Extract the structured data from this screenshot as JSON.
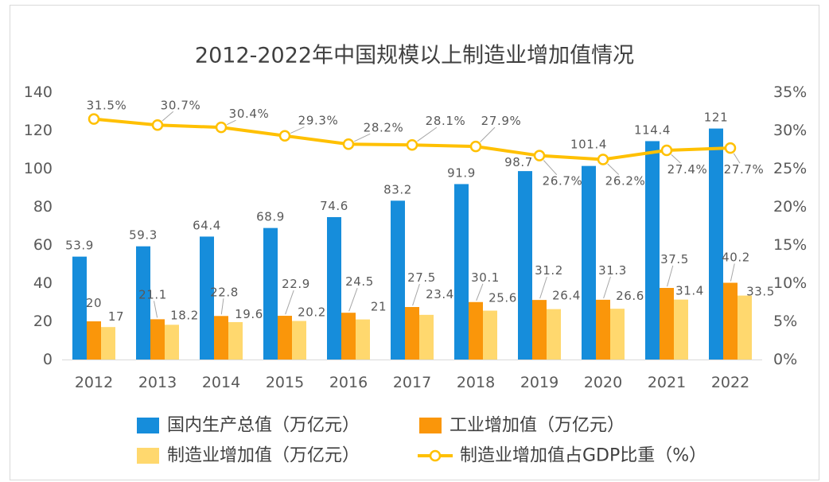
{
  "chart_data": {
    "type": "bar",
    "title": "2012-2022年中国规模以上制造业增加值情况",
    "categories": [
      "2012",
      "2013",
      "2014",
      "2015",
      "2016",
      "2017",
      "2018",
      "2019",
      "2020",
      "2021",
      "2022"
    ],
    "y_left": {
      "ylim": [
        0,
        140
      ],
      "ticks": [
        "0",
        "20",
        "40",
        "60",
        "80",
        "100",
        "120",
        "140"
      ]
    },
    "y_right": {
      "ylim": [
        0,
        35
      ],
      "ticks": [
        "0%",
        "5%",
        "10%",
        "15%",
        "20%",
        "25%",
        "30%",
        "35%"
      ]
    },
    "grid": false,
    "legend": "bottom",
    "series": [
      {
        "name": "国内生产总值（万亿元）",
        "type": "bar",
        "axis": "left",
        "color": "#168ddb",
        "values": [
          53.9,
          59.3,
          64.4,
          68.9,
          74.6,
          83.2,
          91.9,
          98.7,
          101.4,
          114.4,
          121
        ],
        "labels": [
          "53.9",
          "59.3",
          "64.4",
          "68.9",
          "74.6",
          "83.2",
          "91.9",
          "98.7",
          "101.4",
          "114.4",
          "121"
        ]
      },
      {
        "name": "工业增加值（万亿元）",
        "type": "bar",
        "axis": "left",
        "color": "#fa960a",
        "values": [
          20,
          21.1,
          22.8,
          22.9,
          24.5,
          27.5,
          30.1,
          31.2,
          31.3,
          37.5,
          40.2
        ],
        "labels": [
          "20",
          "21.1",
          "22.8",
          "22.9",
          "24.5",
          "27.5",
          "30.1",
          "31.2",
          "31.3",
          "37.5",
          "40.2"
        ]
      },
      {
        "name": "制造业增加值（万亿元）",
        "type": "bar",
        "axis": "left",
        "color": "#ffd86e",
        "values": [
          17,
          18.2,
          19.6,
          20.2,
          21,
          23.4,
          25.6,
          26.4,
          26.6,
          31.4,
          33.5
        ],
        "labels": [
          "17",
          "18.2",
          "19.6",
          "20.2",
          "21",
          "23.4",
          "25.6",
          "26.4",
          "26.6",
          "31.4",
          "33.5"
        ]
      },
      {
        "name": "制造业增加值占GDP比重（%）",
        "type": "line",
        "axis": "right",
        "color": "#ffc000",
        "values": [
          31.5,
          30.7,
          30.4,
          29.3,
          28.2,
          28.1,
          27.9,
          26.7,
          26.2,
          27.4,
          27.7
        ],
        "labels": [
          "31.5%",
          "30.7%",
          "30.4%",
          "29.3%",
          "28.2%",
          "28.1%",
          "27.9%",
          "26.7%",
          "26.2%",
          "27.4%",
          "27.7%"
        ]
      }
    ]
  }
}
